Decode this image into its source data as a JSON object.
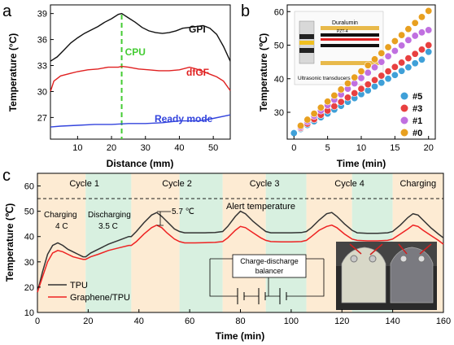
{
  "panels": {
    "a": "a",
    "b": "b",
    "c": "c"
  },
  "chart_data": [
    {
      "panel": "a",
      "type": "line",
      "xlabel": "Distance (mm)",
      "ylabel": "Temperature (°C)",
      "xlim": [
        2,
        55
      ],
      "ylim": [
        24.5,
        40
      ],
      "xticks": [
        10,
        20,
        30,
        40,
        50
      ],
      "yticks": [
        27,
        30,
        33,
        36,
        39
      ],
      "series": [
        {
          "name": "GPI",
          "color": "#111111",
          "x": [
            2,
            4,
            6,
            8,
            10,
            12,
            14,
            16,
            18,
            20,
            22,
            23,
            25,
            27,
            29,
            31,
            33,
            35,
            37,
            39,
            41,
            43,
            45,
            47,
            49,
            51,
            53,
            55
          ],
          "y": [
            33.5,
            34.0,
            34.8,
            35.6,
            36.2,
            36.7,
            37.1,
            37.5,
            38.0,
            38.4,
            38.9,
            39.0,
            38.5,
            38.0,
            37.4,
            37.0,
            36.8,
            36.7,
            36.8,
            37.0,
            37.3,
            37.4,
            37.5,
            37.6,
            37.3,
            36.6,
            35.2,
            33.5
          ]
        },
        {
          "name": "dfGF",
          "color": "#e02020",
          "x": [
            2,
            3,
            5,
            8,
            10,
            13,
            16,
            19,
            22,
            23,
            25,
            28,
            31,
            34,
            37,
            40,
            43,
            45,
            47,
            49,
            51,
            53,
            55
          ],
          "y": [
            30.0,
            31.2,
            31.8,
            32.1,
            32.3,
            32.5,
            32.6,
            32.8,
            32.8,
            32.9,
            32.8,
            32.6,
            32.5,
            32.4,
            32.4,
            32.5,
            32.8,
            32.6,
            32.3,
            32.0,
            31.7,
            31.2,
            30.1
          ]
        },
        {
          "name": "Ready mode",
          "color": "#3344dd",
          "x": [
            2,
            5,
            10,
            15,
            20,
            25,
            30,
            35,
            40,
            43,
            46,
            50,
            55
          ],
          "y": [
            25.9,
            26.0,
            26.1,
            26.2,
            26.2,
            26.3,
            26.3,
            26.4,
            26.6,
            26.6,
            26.6,
            26.9,
            27.3
          ]
        }
      ],
      "annotations": [
        {
          "text": "CPU",
          "x": 23,
          "color": "#44cc33"
        }
      ]
    },
    {
      "panel": "b",
      "type": "scatter",
      "xlabel": "Time (min)",
      "ylabel": "Temperature (℃)",
      "xlim": [
        -1,
        21
      ],
      "ylim": [
        22,
        62
      ],
      "xticks": [
        0,
        5,
        10,
        15,
        20
      ],
      "yticks": [
        30,
        40,
        50,
        60
      ],
      "inset_labels": {
        "top": "Duralumin",
        "mid": "PZT-4",
        "bottom": "Ultrasonic transducers"
      },
      "series": [
        {
          "name": "#5",
          "color": "#3fa0d8",
          "x": [
            0,
            1,
            2,
            3,
            4,
            5,
            6,
            7,
            8,
            9,
            10,
            11,
            12,
            13,
            14,
            15,
            16,
            17,
            18,
            19,
            20
          ],
          "y": [
            23.8,
            25.0,
            26.2,
            27.3,
            28.5,
            29.6,
            30.8,
            31.9,
            33.1,
            34.2,
            35.4,
            36.5,
            37.7,
            38.8,
            40.0,
            41.1,
            42.3,
            43.4,
            44.6,
            45.7,
            48.0
          ]
        },
        {
          "name": "#3",
          "color": "#e84040",
          "x": [
            1,
            2,
            3,
            4,
            5,
            6,
            7,
            8,
            9,
            10,
            11,
            12,
            13,
            14,
            15,
            16,
            17,
            18,
            19,
            20
          ],
          "y": [
            25.3,
            26.6,
            27.9,
            29.2,
            30.5,
            31.8,
            33.1,
            34.4,
            35.7,
            37.0,
            38.3,
            39.6,
            40.9,
            42.2,
            43.5,
            44.8,
            46.1,
            47.4,
            48.7,
            50.0
          ]
        },
        {
          "name": "#1",
          "color": "#c070e0",
          "x": [
            1,
            2,
            3,
            4,
            5,
            6,
            7,
            8,
            9,
            10,
            11,
            12,
            13,
            14,
            15,
            16,
            17,
            18,
            19,
            20
          ],
          "y": [
            25.6,
            27.2,
            28.9,
            30.5,
            32.1,
            33.7,
            35.3,
            37.0,
            38.6,
            40.2,
            41.8,
            43.4,
            45.0,
            46.7,
            48.3,
            49.9,
            51.5,
            52.8,
            53.8,
            54.5
          ]
        },
        {
          "name": "#0",
          "color": "#e8a020",
          "x": [
            1,
            2,
            3,
            4,
            5,
            6,
            7,
            8,
            9,
            10,
            11,
            12,
            13,
            14,
            15,
            16,
            17,
            18,
            19,
            20
          ],
          "y": [
            26.0,
            27.8,
            29.6,
            31.4,
            33.2,
            35.0,
            36.8,
            38.6,
            40.4,
            42.2,
            44.0,
            45.8,
            47.6,
            49.4,
            51.2,
            53.0,
            54.8,
            56.6,
            58.4,
            60.2
          ]
        }
      ]
    },
    {
      "panel": "c",
      "type": "line",
      "xlabel": "Time (min)",
      "ylabel": "Temperature (℃)",
      "xlim": [
        0,
        160
      ],
      "ylim": [
        10,
        65
      ],
      "xticks": [
        0,
        20,
        40,
        60,
        80,
        100,
        120,
        140,
        160
      ],
      "yticks": [
        10,
        20,
        30,
        40,
        50,
        60
      ],
      "alert_temperature": 55,
      "alert_label": "Alert temperature",
      "cycles": [
        "Cycle 1",
        "Cycle 2",
        "Cycle 3",
        "Cycle 4",
        "Charging"
      ],
      "regions": [
        {
          "from": 0,
          "to": 19,
          "kind": "charge"
        },
        {
          "from": 19,
          "to": 37,
          "kind": "discharge"
        },
        {
          "from": 37,
          "to": 56,
          "kind": "charge"
        },
        {
          "from": 56,
          "to": 73,
          "kind": "discharge"
        },
        {
          "from": 73,
          "to": 90,
          "kind": "charge"
        },
        {
          "from": 90,
          "to": 106,
          "kind": "discharge"
        },
        {
          "from": 106,
          "to": 124,
          "kind": "charge"
        },
        {
          "from": 124,
          "to": 140,
          "kind": "discharge"
        },
        {
          "from": 140,
          "to": 160,
          "kind": "charge"
        }
      ],
      "region_colors": {
        "charge": "#fdebd3",
        "discharge": "#d8f0e0"
      },
      "text_labels": {
        "charging": "Charging",
        "charging_rate": "4 C",
        "discharging": "Discharging",
        "discharging_rate": "3.5 C",
        "delta": "5.7 ℃",
        "balancer_line1": "Charge-discharge",
        "balancer_line2": "balancer"
      },
      "series": [
        {
          "name": "TPU",
          "color": "#333333",
          "x": [
            0,
            2,
            4,
            6,
            8,
            10,
            12,
            14,
            16,
            18,
            19,
            21,
            24,
            28,
            32,
            36,
            37,
            39,
            42,
            45,
            47,
            49,
            51,
            54,
            56,
            58,
            62,
            66,
            70,
            73,
            75,
            78,
            80,
            82,
            85,
            88,
            90,
            92,
            96,
            100,
            104,
            106,
            108,
            111,
            114,
            116,
            118,
            121,
            124,
            126,
            130,
            134,
            138,
            140,
            143,
            146,
            148,
            150,
            152,
            155,
            158,
            160
          ],
          "y": [
            18,
            26,
            33,
            36.5,
            37.5,
            36.5,
            35,
            34,
            33,
            32,
            32,
            33.5,
            35,
            37,
            38.5,
            40,
            40,
            42,
            45.5,
            48.5,
            49.5,
            48,
            46,
            43,
            42,
            41.5,
            41.5,
            41.5,
            41.6,
            42,
            44,
            48,
            50,
            49,
            46,
            43.5,
            42,
            41.5,
            41.5,
            41.5,
            41.6,
            42,
            43.5,
            46.5,
            49,
            49.5,
            48,
            45,
            42.5,
            41.5,
            41.3,
            41.3,
            41.5,
            42,
            44.5,
            47.5,
            49,
            48.5,
            46.5,
            43.5,
            41,
            39.5
          ]
        },
        {
          "name": "Graphene/TPU",
          "color": "#ee2222",
          "x": [
            0,
            2,
            4,
            6,
            8,
            10,
            12,
            14,
            16,
            18,
            19,
            21,
            24,
            28,
            32,
            36,
            37,
            39,
            42,
            45,
            47,
            49,
            51,
            54,
            56,
            58,
            62,
            66,
            70,
            73,
            75,
            78,
            80,
            82,
            85,
            88,
            90,
            92,
            96,
            100,
            104,
            106,
            108,
            111,
            114,
            116,
            118,
            121,
            124,
            126,
            130,
            134,
            138,
            140,
            143,
            146,
            148,
            150,
            152,
            155,
            158,
            160
          ],
          "y": [
            18,
            24,
            30,
            33.5,
            34.5,
            34,
            33,
            32,
            31.5,
            31,
            31,
            32,
            33,
            34.5,
            35.5,
            36.5,
            36.5,
            38,
            41,
            43.5,
            44.5,
            43.5,
            41.5,
            39,
            38,
            37.5,
            37.5,
            37.6,
            37.7,
            38,
            39.5,
            42.5,
            44,
            43.5,
            41.5,
            39.5,
            38.5,
            38,
            37.9,
            37.9,
            38,
            38.5,
            40,
            42.5,
            44,
            44.5,
            43.5,
            41,
            39,
            38.5,
            38.3,
            38.3,
            38.5,
            39,
            41,
            43,
            44.5,
            44,
            42.5,
            40.5,
            38.5,
            37
          ]
        }
      ]
    }
  ]
}
